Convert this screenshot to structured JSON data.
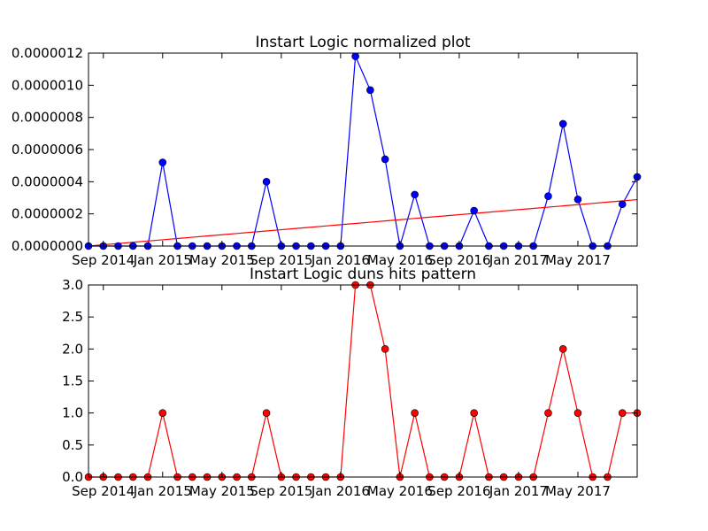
{
  "chart_data": [
    {
      "type": "line",
      "title": "Instart Logic normalized plot",
      "xlabel": "",
      "ylabel": "",
      "x": [
        "2014-08",
        "2014-09",
        "2014-10",
        "2014-11",
        "2014-12",
        "2015-01",
        "2015-02",
        "2015-03",
        "2015-04",
        "2015-05",
        "2015-06",
        "2015-07",
        "2015-08",
        "2015-09",
        "2015-10",
        "2015-11",
        "2015-12",
        "2016-01",
        "2016-02",
        "2016-03",
        "2016-04",
        "2016-05",
        "2016-06",
        "2016-07",
        "2016-08",
        "2016-09",
        "2016-10",
        "2016-11",
        "2016-12",
        "2017-01",
        "2017-02",
        "2017-03",
        "2017-04",
        "2017-05",
        "2017-06",
        "2017-07",
        "2017-08",
        "2017-09"
      ],
      "x_tick_labels": [
        "Sep 2014",
        "Jan 2015",
        "May 2015",
        "Sep 2015",
        "Jan 2016",
        "May 2016",
        "Sep 2016",
        "Jan 2017",
        "May 2017"
      ],
      "y_tick_labels": [
        "0.0000000",
        "0.0000002",
        "0.0000004",
        "0.0000006",
        "0.0000008",
        "0.0000010",
        "0.0000012"
      ],
      "ylim": [
        0,
        1.2e-06
      ],
      "grid": false,
      "series": [
        {
          "color": "#0000ff",
          "marker": "circle",
          "values": [
            0,
            0,
            0,
            0,
            0,
            5.2e-07,
            0,
            0,
            0,
            0,
            0,
            0,
            4e-07,
            0,
            0,
            0,
            0,
            0,
            1.18e-06,
            9.7e-07,
            5.4e-07,
            0,
            3.2e-07,
            0,
            0,
            0,
            2.2e-07,
            0,
            0,
            0,
            0,
            3.1e-07,
            7.6e-07,
            2.9e-07,
            0,
            0,
            2.6e-07,
            4.3e-07
          ]
        },
        {
          "color": "#ff0000",
          "marker": "none",
          "values": [
            0.0,
            7.8e-09,
            1.56e-08,
            2.34e-08,
            3.12e-08,
            3.9e-08,
            4.68e-08,
            5.46e-08,
            6.24e-08,
            7.02e-08,
            7.8e-08,
            8.58e-08,
            9.36e-08,
            1.014e-07,
            1.092e-07,
            1.17e-07,
            1.248e-07,
            1.326e-07,
            1.404e-07,
            1.482e-07,
            1.56e-07,
            1.638e-07,
            1.716e-07,
            1.794e-07,
            1.872e-07,
            1.95e-07,
            2.028e-07,
            2.106e-07,
            2.184e-07,
            2.262e-07,
            2.34e-07,
            2.418e-07,
            2.496e-07,
            2.574e-07,
            2.652e-07,
            2.73e-07,
            2.808e-07,
            2.886e-07
          ]
        }
      ]
    },
    {
      "type": "line",
      "title": "Instart Logic duns hits pattern",
      "xlabel": "",
      "ylabel": "",
      "x": [
        "2014-08",
        "2014-09",
        "2014-10",
        "2014-11",
        "2014-12",
        "2015-01",
        "2015-02",
        "2015-03",
        "2015-04",
        "2015-05",
        "2015-06",
        "2015-07",
        "2015-08",
        "2015-09",
        "2015-10",
        "2015-11",
        "2015-12",
        "2016-01",
        "2016-02",
        "2016-03",
        "2016-04",
        "2016-05",
        "2016-06",
        "2016-07",
        "2016-08",
        "2016-09",
        "2016-10",
        "2016-11",
        "2016-12",
        "2017-01",
        "2017-02",
        "2017-03",
        "2017-04",
        "2017-05",
        "2017-06",
        "2017-07",
        "2017-08",
        "2017-09"
      ],
      "x_tick_labels": [
        "Sep 2014",
        "Jan 2015",
        "May 2015",
        "Sep 2015",
        "Jan 2016",
        "May 2016",
        "Sep 2016",
        "Jan 2017",
        "May 2017"
      ],
      "y_tick_labels": [
        "0.0",
        "0.5",
        "1.0",
        "1.5",
        "2.0",
        "2.5",
        "3.0"
      ],
      "ylim": [
        0,
        3
      ],
      "grid": false,
      "series": [
        {
          "color": "#ff0000",
          "marker": "circle",
          "values": [
            0,
            0,
            0,
            0,
            0,
            1,
            0,
            0,
            0,
            0,
            0,
            0,
            1,
            0,
            0,
            0,
            0,
            0,
            3,
            3,
            2,
            0,
            1,
            0,
            0,
            0,
            1,
            0,
            0,
            0,
            0,
            1,
            2,
            1,
            0,
            0,
            1,
            1
          ]
        }
      ]
    }
  ]
}
